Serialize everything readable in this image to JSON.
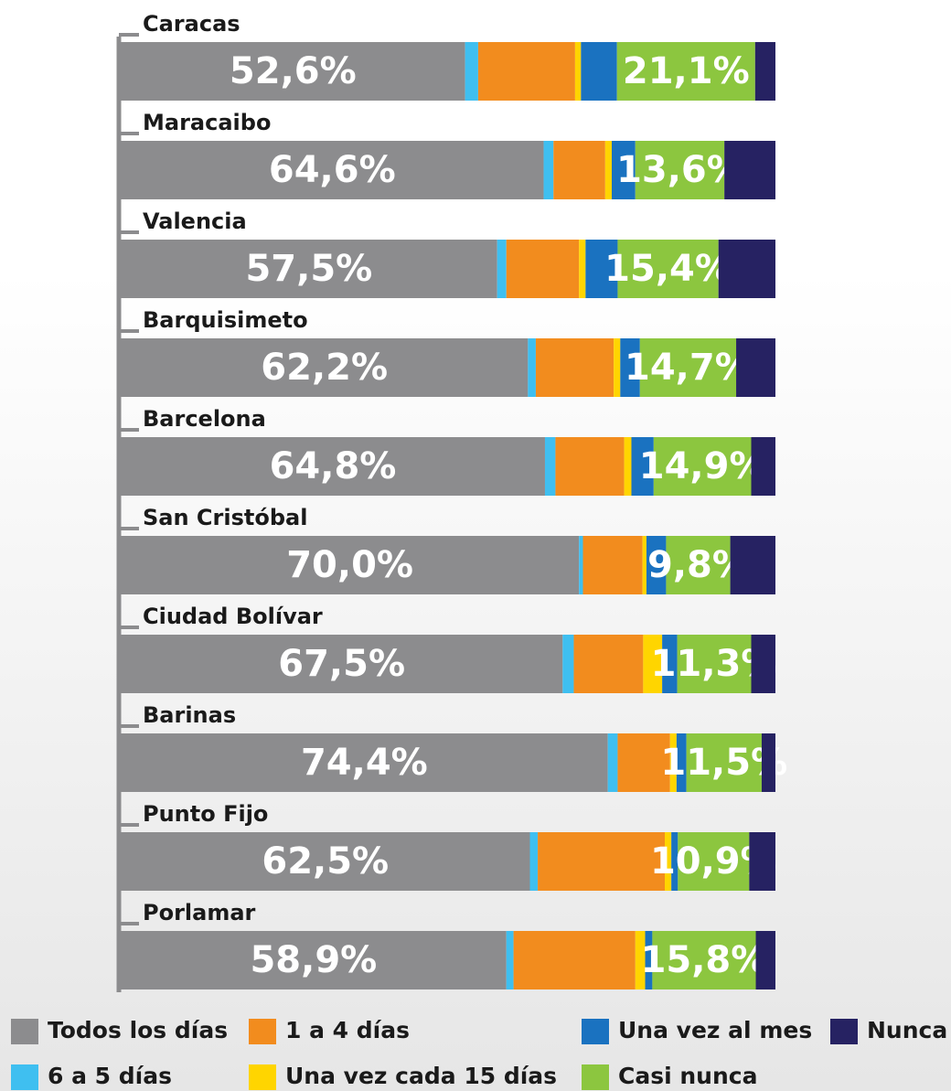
{
  "chart_data": {
    "type": "stacked_bar_horizontal",
    "categories": [
      "Caracas",
      "Maracaibo",
      "Valencia",
      "Barquisimeto",
      "Barcelona",
      "San Cristóbal",
      "Ciudad Bolívar",
      "Barinas",
      "Punto Fijo",
      "Porlamar"
    ],
    "series": [
      {
        "name": "Todos los días",
        "color": "#8c8c8e",
        "values": [
          52.6,
          64.6,
          57.5,
          62.2,
          64.8,
          70.0,
          67.5,
          74.4,
          62.5,
          58.9
        ],
        "value_labels": [
          "52,6%",
          "64,6%",
          "57,5%",
          "62,2%",
          "64,8%",
          "70,0%",
          "67,5%",
          "74,4%",
          "62,5%",
          "58,9%"
        ]
      },
      {
        "name": "6 a 5 días",
        "color": "#3fbff0",
        "values": [
          2.0,
          1.5,
          1.4,
          1.2,
          1.6,
          0.6,
          1.7,
          1.5,
          1.2,
          1.1
        ]
      },
      {
        "name": "1 a 4 días",
        "color": "#f28c1e",
        "values": [
          14.8,
          7.9,
          11.1,
          11.9,
          10.5,
          9.1,
          10.6,
          8.0,
          19.4,
          18.6
        ]
      },
      {
        "name": "Una vez cada 15 días",
        "color": "#ffd500",
        "values": [
          0.9,
          1.0,
          1.0,
          1.0,
          1.1,
          0.6,
          2.9,
          1.0,
          1.0,
          1.5
        ]
      },
      {
        "name": "Una vez al mes",
        "color": "#1a72c0",
        "values": [
          5.5,
          3.6,
          4.9,
          3.0,
          3.4,
          3.0,
          2.3,
          1.5,
          1.0,
          1.1
        ]
      },
      {
        "name": "Casi nunca",
        "color": "#8cc63f",
        "values": [
          21.1,
          13.6,
          15.4,
          14.7,
          14.9,
          9.8,
          11.3,
          11.5,
          10.9,
          15.8
        ],
        "value_labels": [
          "21,1%",
          "13,6%",
          "15,4%",
          "14,7%",
          "14,9%",
          "9,8%",
          "11,3%",
          "11,5%",
          "10,9%",
          "15,8%"
        ]
      },
      {
        "name": "Nunca",
        "color": "#262262",
        "values": [
          3.1,
          7.8,
          8.7,
          6.0,
          3.7,
          6.9,
          3.7,
          2.1,
          4.0,
          3.0
        ]
      }
    ],
    "xlim": [
      0,
      100
    ]
  }
}
